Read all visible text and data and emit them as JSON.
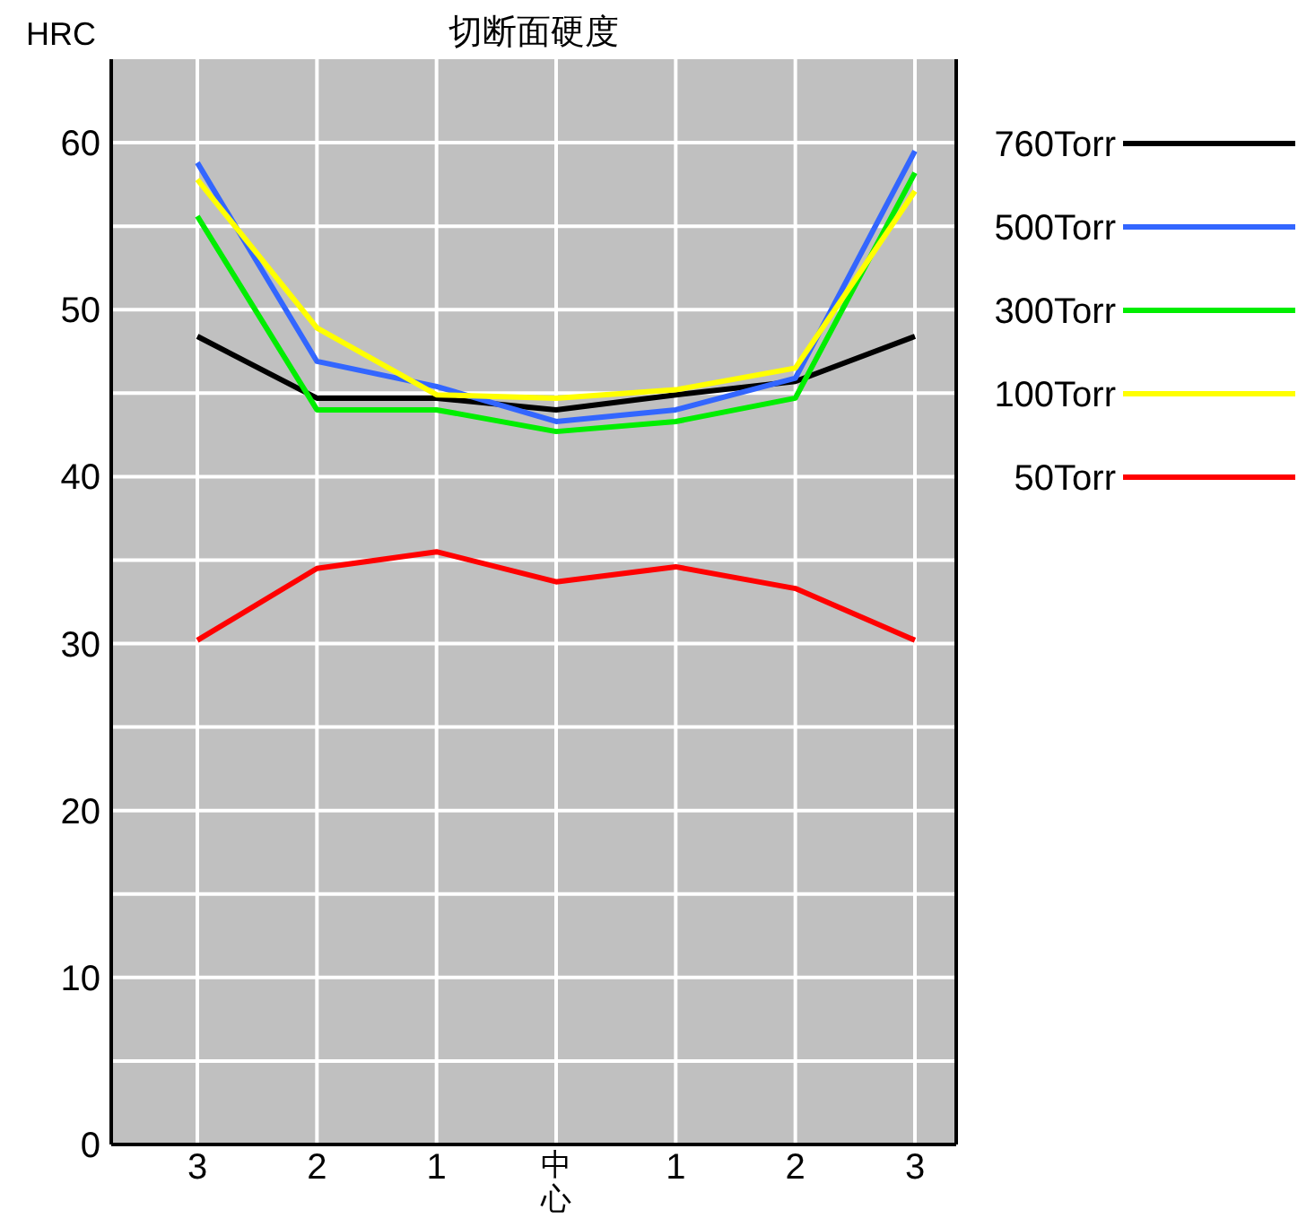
{
  "chart_data": {
    "type": "line",
    "title": "切断面硬度",
    "ylabel": "HRC",
    "categories": [
      "3",
      "2",
      "1",
      "中心",
      "1",
      "2",
      "3"
    ],
    "ylim": [
      0,
      65
    ],
    "yticks": [
      0,
      {
        "value": 5,
        "label": null
      },
      10,
      {
        "value": 15,
        "label": null
      },
      20,
      {
        "value": 25,
        "label": null
      },
      30,
      {
        "value": 35,
        "label": null
      },
      40,
      {
        "value": 45,
        "label": null
      },
      50,
      {
        "value": 55,
        "label": null
      },
      60
    ],
    "grid": true,
    "legend": "right",
    "marker": "none",
    "line_style": "solid",
    "series": [
      {
        "name": "760Torr",
        "color": "#000000",
        "values": [
          48.4,
          44.7,
          44.7,
          44.0,
          44.9,
          45.7,
          48.4
        ]
      },
      {
        "name": "500Torr",
        "color": "#3366ff",
        "values": [
          58.8,
          46.9,
          45.4,
          43.3,
          44.0,
          45.9,
          59.5
        ]
      },
      {
        "name": "300Torr",
        "color": "#00ee00",
        "values": [
          55.6,
          44.0,
          44.0,
          42.7,
          43.3,
          44.7,
          58.2
        ]
      },
      {
        "name": "100Torr",
        "color": "#ffff00",
        "values": [
          57.8,
          48.9,
          44.9,
          44.7,
          45.2,
          46.5,
          57.1
        ]
      },
      {
        "name": "50Torr",
        "color": "#ff0000",
        "values": [
          30.2,
          34.5,
          35.5,
          33.7,
          34.6,
          33.3,
          30.2
        ]
      }
    ]
  }
}
